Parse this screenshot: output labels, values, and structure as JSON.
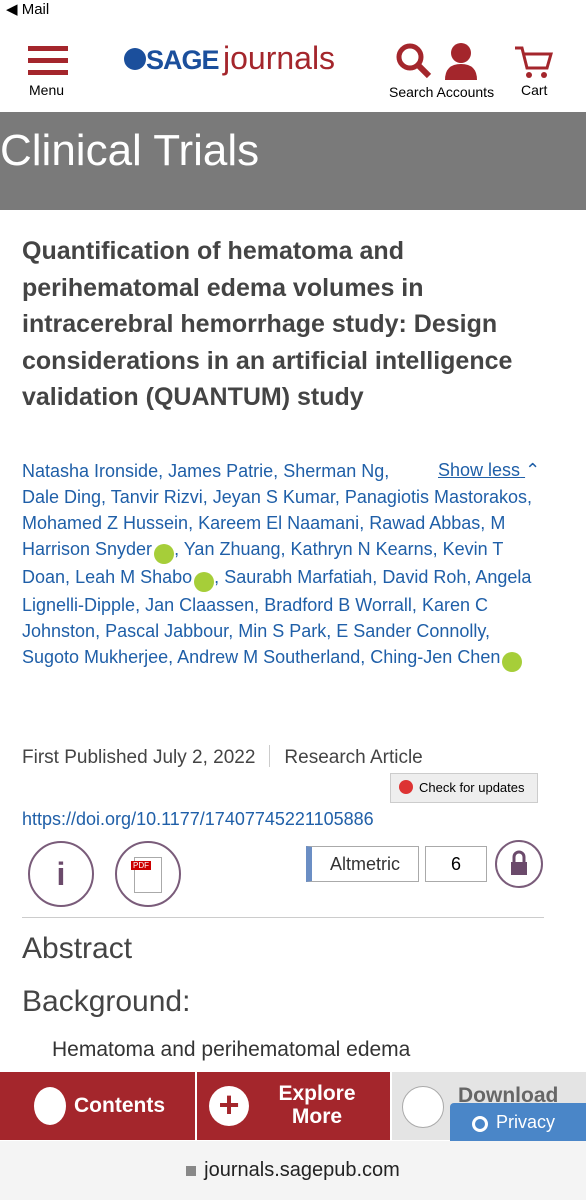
{
  "status": {
    "back_app": "Mail"
  },
  "header": {
    "menu": "Menu",
    "logo_brand": "SAGE",
    "logo_word": "journals",
    "search": "Search",
    "accounts": "Accounts",
    "cart": "Cart"
  },
  "banner": {
    "title": "Clinical Trials"
  },
  "article": {
    "title": "Quantification of hematoma and perihematomal edema volumes in intracerebral hemorrhage study: Design considerations in an artificial intelligence validation (QUANTUM) study",
    "show_less": "Show less",
    "separator": ",",
    "authors": [
      {
        "name": "Natasha Ironside",
        "orcid": false
      },
      {
        "name": "James Patrie",
        "orcid": false
      },
      {
        "name": "Sherman Ng",
        "orcid": false
      },
      {
        "name": "Dale Ding",
        "orcid": false
      },
      {
        "name": "Tanvir Rizvi",
        "orcid": false
      },
      {
        "name": "Jeyan S Kumar",
        "orcid": false
      },
      {
        "name": "Panagiotis Mastorakos",
        "orcid": false
      },
      {
        "name": "Mohamed Z Hussein",
        "orcid": false
      },
      {
        "name": "Kareem El Naamani",
        "orcid": false
      },
      {
        "name": "Rawad Abbas",
        "orcid": false
      },
      {
        "name": "M Harrison Snyder",
        "orcid": true
      },
      {
        "name": "Yan Zhuang",
        "orcid": false
      },
      {
        "name": "Kathryn N Kearns",
        "orcid": false
      },
      {
        "name": "Kevin T Doan",
        "orcid": false
      },
      {
        "name": "Leah M Shabo",
        "orcid": true
      },
      {
        "name": "Saurabh Marfatiah",
        "orcid": false
      },
      {
        "name": "David Roh",
        "orcid": false
      },
      {
        "name": "Angela Lignelli-Dipple",
        "orcid": false
      },
      {
        "name": "Jan Claassen",
        "orcid": false
      },
      {
        "name": "Bradford B Worrall",
        "orcid": false
      },
      {
        "name": "Karen C Johnston",
        "orcid": false
      },
      {
        "name": "Pascal Jabbour",
        "orcid": false
      },
      {
        "name": "Min S Park",
        "orcid": false
      },
      {
        "name": "E Sander Connolly",
        "orcid": false
      },
      {
        "name": "Sugoto Mukherjee",
        "orcid": false
      },
      {
        "name": "Andrew M Southerland",
        "orcid": false
      },
      {
        "name": "Ching-Jen Chen",
        "orcid": true
      }
    ],
    "published": "First Published July 2, 2022",
    "article_type": "Research Article",
    "check_updates": "Check for updates",
    "doi": "https://doi.org/10.1177/17407745221105886",
    "altmetric": "Altmetric",
    "altmetric_score": 6
  },
  "abstract": {
    "heading": "Abstract",
    "subheading": "Background:",
    "text": "Hematoma and perihematomal edema"
  },
  "bottom_bar": {
    "contents": "Contents",
    "explore": "Explore More",
    "download": "Download",
    "privacy": "Privacy"
  },
  "url_bar": {
    "url": "journals.sagepub.com"
  }
}
